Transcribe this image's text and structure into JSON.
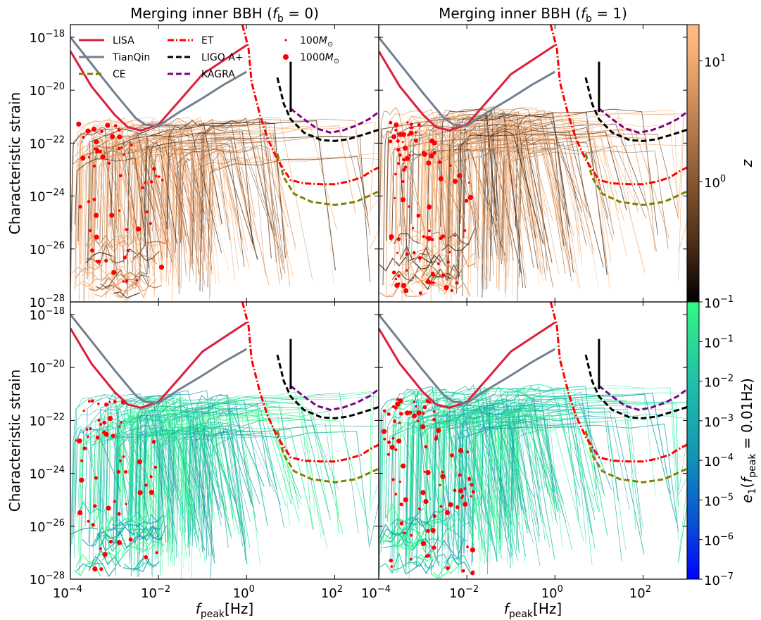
{
  "chart_data": [
    {
      "type": "line",
      "panel": "top-left",
      "title": "Merging inner BBH (f_b = 0)",
      "title_parts": {
        "prefix": "Merging inner BBH (",
        "var": "f",
        "sub": "b",
        "suffix": " = 0)"
      },
      "xlabel": "f_peak[Hz]",
      "ylabel": "Characteristic strain",
      "xscale": "log",
      "yscale": "log",
      "xlim": [
        0.0001,
        1000
      ],
      "ylim": [
        1e-28,
        3e-18
      ],
      "color_mapping": "z (redshift)"
    },
    {
      "type": "line",
      "panel": "top-right",
      "title": "Merging inner BBH (f_b = 1)",
      "title_parts": {
        "prefix": "Merging inner BBH (",
        "var": "f",
        "sub": "b",
        "suffix": " = 1)"
      },
      "xscale": "log",
      "yscale": "log",
      "xlim": [
        0.0001,
        1000
      ],
      "ylim": [
        1e-28,
        3e-18
      ],
      "color_mapping": "z (redshift)"
    },
    {
      "type": "line",
      "panel": "bottom-left",
      "xlabel": "f_peak[Hz]",
      "ylabel": "Characteristic strain",
      "xscale": "log",
      "yscale": "log",
      "xlim": [
        0.0001,
        1000
      ],
      "ylim": [
        1e-28,
        3e-18
      ],
      "color_mapping": "e1(f_peak = 0.01Hz)"
    },
    {
      "type": "line",
      "panel": "bottom-right",
      "xlabel": "f_peak[Hz]",
      "xscale": "log",
      "yscale": "log",
      "xlim": [
        0.0001,
        1000
      ],
      "ylim": [
        1e-28,
        3e-18
      ],
      "color_mapping": "e1(f_peak = 0.01Hz)"
    }
  ],
  "axes": {
    "xlabel_var": "f",
    "xlabel_sub": "peak",
    "xlabel_unit": "[Hz]",
    "ylabel": "Characteristic strain",
    "x_ticks": [
      {
        "exp": -4
      },
      {
        "exp": -2
      },
      {
        "exp": 0
      },
      {
        "exp": 2
      }
    ],
    "y_ticks": [
      {
        "exp": -18
      },
      {
        "exp": -20
      },
      {
        "exp": -22
      },
      {
        "exp": -24
      },
      {
        "exp": -26
      },
      {
        "exp": -28
      }
    ]
  },
  "colorbars": {
    "z": {
      "label": "z",
      "scale": "log",
      "range": [
        0.1,
        20
      ],
      "ticks": [
        {
          "base": "10",
          "exp": "1",
          "value": 10
        },
        {
          "base": "10",
          "exp": "0",
          "value": 1
        },
        {
          "base": "10",
          "exp": "−1",
          "value": 0.1
        }
      ],
      "colors": [
        "#000000",
        "#4a2b18",
        "#8a5a34",
        "#c88a58",
        "#f4b077",
        "#ffbd84"
      ]
    },
    "e": {
      "label_parts": {
        "var": "e",
        "sub1": "1",
        "open": "(",
        "var2": "f",
        "sub2": "peak",
        "rest": " = 0.01Hz)"
      },
      "scale": "log",
      "range": [
        1e-07,
        1
      ],
      "ticks": [
        {
          "base": "10",
          "exp": "−1",
          "value": 0.1
        },
        {
          "base": "10",
          "exp": "−2",
          "value": 0.01
        },
        {
          "base": "10",
          "exp": "−3",
          "value": 0.001
        },
        {
          "base": "10",
          "exp": "−4",
          "value": 0.0001
        },
        {
          "base": "10",
          "exp": "−5",
          "value": 1e-05
        },
        {
          "base": "10",
          "exp": "−6",
          "value": 1e-06
        },
        {
          "base": "10",
          "exp": "−7",
          "value": 1e-07
        }
      ],
      "colors": [
        "#0000ff",
        "#0a4fd6",
        "#1496b3",
        "#1fbfa8",
        "#2fe28f",
        "#2dff86"
      ]
    }
  },
  "legend": {
    "placement": "top-left of top-left panel",
    "entries": [
      {
        "label": "LISA",
        "color": "#dc1e3c",
        "style": "solid"
      },
      {
        "label": "TianQin",
        "color": "#708090",
        "style": "solid"
      },
      {
        "label": "CE",
        "color": "#808000",
        "style": "dashed"
      },
      {
        "label": "ET",
        "color": "#ff0000",
        "style": "dashdot"
      },
      {
        "label": "LIGO A+",
        "color": "#000000",
        "style": "dashed"
      },
      {
        "label": "KAGRA",
        "color": "#800080",
        "style": "dashed"
      },
      {
        "label": "100M⊙",
        "color": "#ff0000",
        "style": "small-dot"
      },
      {
        "label": "1000M⊙",
        "color": "#ff0000",
        "style": "large-dot"
      }
    ]
  },
  "detector_curves": [
    {
      "name": "LISA",
      "color": "#dc1e3c",
      "style": "solid",
      "points": [
        [
          0.0001,
          3e-19
        ],
        [
          0.0003,
          1.4e-20
        ],
        [
          0.001,
          1.2e-21
        ],
        [
          0.002,
          4e-22
        ],
        [
          0.004,
          3e-22
        ],
        [
          0.01,
          5e-22
        ],
        [
          0.03,
          4e-21
        ],
        [
          0.1,
          4e-20
        ],
        [
          1,
          5e-19
        ]
      ]
    },
    {
      "name": "TianQin",
      "color": "#708090",
      "style": "solid",
      "points": [
        [
          0.0001,
          1e-18
        ],
        [
          0.001,
          8e-21
        ],
        [
          0.003,
          9e-22
        ],
        [
          0.005,
          5e-22
        ],
        [
          0.01,
          4.5e-22
        ],
        [
          0.03,
          1.5e-21
        ],
        [
          0.1,
          5e-21
        ],
        [
          0.3,
          1.6e-20
        ],
        [
          1,
          5e-20
        ]
      ]
    },
    {
      "name": "CE",
      "color": "#808000",
      "style": "dashed",
      "points": [
        [
          5,
          4e-23
        ],
        [
          7,
          5e-24
        ],
        [
          12,
          1.2e-24
        ],
        [
          30,
          6e-25
        ],
        [
          100,
          4.6e-25
        ],
        [
          300,
          6e-25
        ],
        [
          1000,
          1.5e-24
        ]
      ]
    },
    {
      "name": "ET",
      "color": "#ff0000",
      "style": "dashdot",
      "points": [
        [
          0.8,
          3e-18
        ],
        [
          1.1,
          4e-19
        ],
        [
          1.3,
          2e-20
        ],
        [
          2,
          1.2e-21
        ],
        [
          3,
          1.5e-22
        ],
        [
          5,
          2.4e-23
        ],
        [
          10,
          4e-24
        ],
        [
          20,
          3e-24
        ],
        [
          50,
          2.8e-24
        ],
        [
          100,
          2.8e-24
        ],
        [
          200,
          3.5e-24
        ],
        [
          400,
          5e-24
        ],
        [
          700,
          9e-24
        ],
        [
          1000,
          1.2e-23
        ]
      ]
    },
    {
      "name": "LIGO A+",
      "color": "#000000",
      "style": "dashed",
      "points": [
        [
          5,
          3e-20
        ],
        [
          7,
          3e-21
        ],
        [
          10,
          8e-22
        ],
        [
          20,
          2.5e-22
        ],
        [
          50,
          1.3e-22
        ],
        [
          100,
          1.2e-22
        ],
        [
          200,
          1.4e-22
        ],
        [
          500,
          2.2e-22
        ],
        [
          1000,
          3.2e-22
        ]
      ]
    },
    {
      "name": "KAGRA",
      "color": "#800080",
      "style": "dashed",
      "points": [
        [
          10,
          2e-21
        ],
        [
          20,
          8e-22
        ],
        [
          40,
          3.5e-22
        ],
        [
          80,
          2.5e-22
        ],
        [
          150,
          3e-22
        ],
        [
          300,
          4.5e-22
        ],
        [
          600,
          8e-22
        ],
        [
          1000,
          1.5e-21
        ]
      ]
    },
    {
      "name": "LIGO A+ (spike)",
      "color": "#000000",
      "style": "solid",
      "points": [
        [
          10,
          1.2e-19
        ],
        [
          10,
          1.5e-21
        ]
      ]
    }
  ]
}
